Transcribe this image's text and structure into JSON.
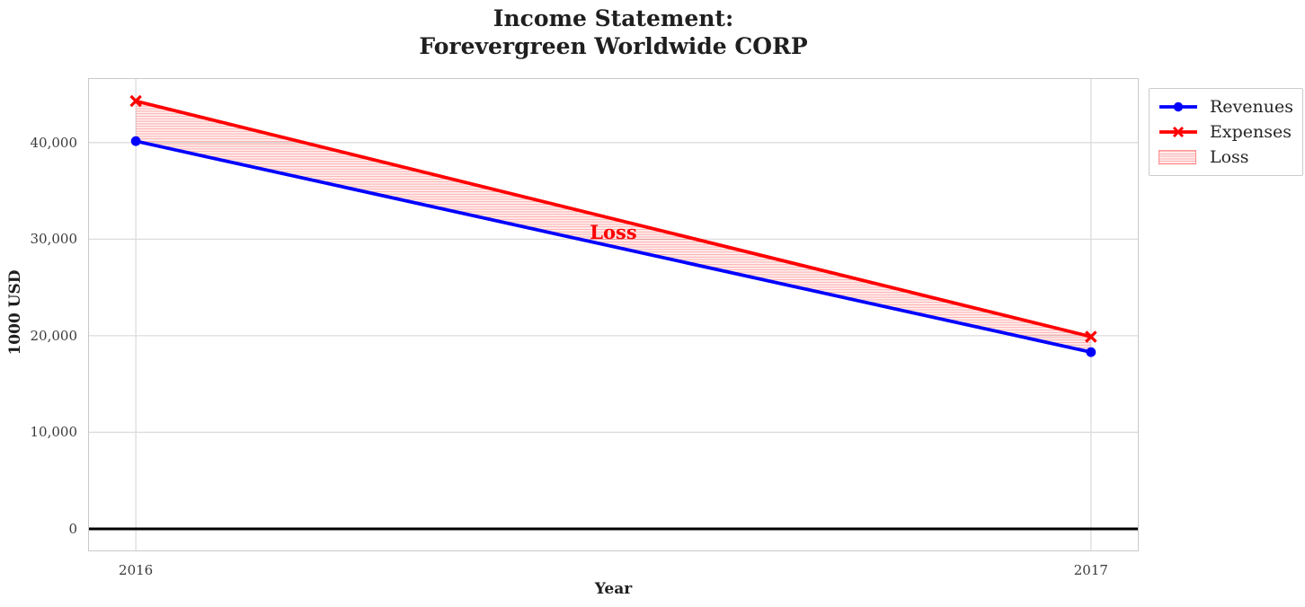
{
  "title_display": "Income Statement:\nForevergreen Worldwide CORP",
  "chart_data": {
    "type": "line",
    "title": "Income Statement: Forevergreen Worldwide CORP",
    "xlabel": "Year",
    "ylabel": "1000 USD",
    "x": [
      2016,
      2017
    ],
    "xtick_labels": [
      "2016",
      "2017"
    ],
    "ytick_values": [
      0,
      10000,
      20000,
      30000,
      40000
    ],
    "ytick_labels": [
      "0",
      "10,000",
      "20,000",
      "30,000",
      "40,000"
    ],
    "xlim": [
      2015.95,
      2017.05
    ],
    "ylim": [
      -2325,
      46675
    ],
    "grid": true,
    "legend_position": "outside-top-right",
    "series": [
      {
        "name": "Revenues",
        "values": [
          40150,
          18300
        ],
        "color": "#0000ff",
        "marker": "circle"
      },
      {
        "name": "Expenses",
        "values": [
          44300,
          19900
        ],
        "color": "#ff0000",
        "marker": "x"
      }
    ],
    "loss_area": {
      "label": "Loss",
      "between": [
        "Expenses",
        "Revenues"
      ],
      "color": "#ff0000",
      "hatch": "horizontal"
    },
    "annotation": {
      "text": "Loss",
      "x": 2016.5,
      "y": 30700,
      "color": "#ff0000"
    },
    "zero_line": {
      "value": 0,
      "color": "#000000"
    },
    "legend_entries": [
      {
        "label": "Revenues",
        "sample": "line-circle",
        "color": "#0000ff"
      },
      {
        "label": "Expenses",
        "sample": "line-x",
        "color": "#ff0000"
      },
      {
        "label": "Loss",
        "sample": "patch",
        "color": "#ff0000"
      }
    ]
  },
  "colors": {
    "revenues": "#0000ff",
    "expenses": "#ff0000",
    "loss_fill": "#ff0000",
    "grid": "#dcdcdc",
    "spine": "#c9c9c9",
    "text": "#1f1f1f",
    "tick_text": "#3a3a3a",
    "zero_line": "#000000",
    "background": "#ffffff"
  }
}
